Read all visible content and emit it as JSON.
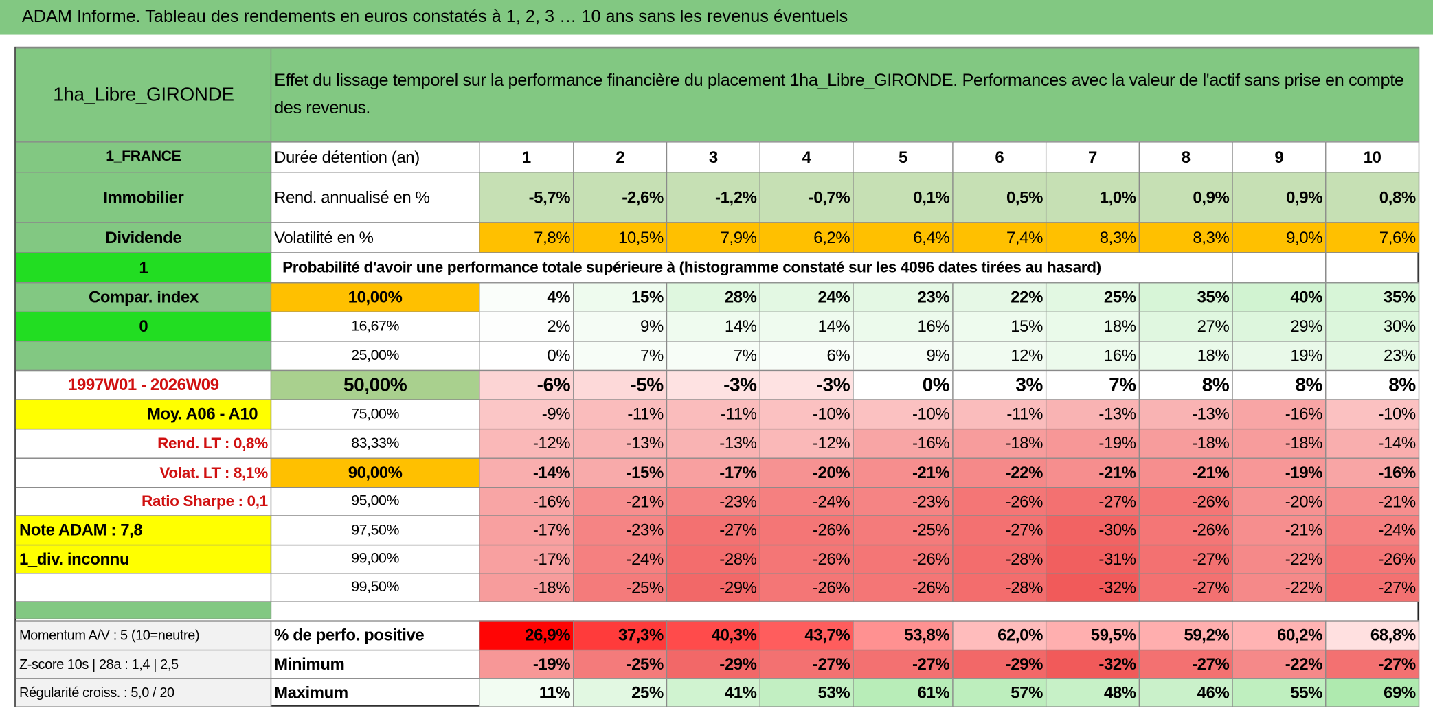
{
  "title": "ADAM Informe. Tableau des rendements en euros constatés à 1, 2, 3 … 10 ans sans les revenus éventuels",
  "header": {
    "fund": "1ha_Libre_GIRONDE",
    "description": "Effet du lissage temporel sur la performance financière du placement 1ha_Libre_GIRONDE. Performances avec la valeur de l'actif sans prise en compte des revenus."
  },
  "rows": [
    {
      "left": "1_FRANCE",
      "label": "Durée détention (an)",
      "cells": [
        "1",
        "2",
        "3",
        "4",
        "5",
        "6",
        "7",
        "8",
        "9",
        "10"
      ]
    },
    {
      "left": "Immobilier",
      "label": "Rend. annualisé en %",
      "cells": [
        "-5,7%",
        "-2,6%",
        "-1,2%",
        "-0,7%",
        "0,1%",
        "0,5%",
        "1,0%",
        "0,9%",
        "0,9%",
        "0,8%"
      ]
    },
    {
      "left": "Dividende",
      "label": "Volatilité en %",
      "cells": [
        "7,8%",
        "10,5%",
        "7,9%",
        "6,2%",
        "6,4%",
        "7,4%",
        "8,3%",
        "8,3%",
        "9,0%",
        "7,6%"
      ]
    },
    {
      "left": "1",
      "note": "Probabilité d'avoir une performance totale supérieure à (histogramme constaté sur les 4096 dates tirées au hasard)"
    },
    {
      "left": "Compar. index",
      "label": "10,00%",
      "cells": [
        "4%",
        "15%",
        "28%",
        "24%",
        "23%",
        "22%",
        "25%",
        "35%",
        "40%",
        "35%"
      ]
    },
    {
      "left": "0",
      "label": "16,67%",
      "cells": [
        "2%",
        "9%",
        "14%",
        "14%",
        "16%",
        "15%",
        "18%",
        "27%",
        "29%",
        "30%"
      ]
    },
    {
      "label": "25,00%",
      "cells": [
        "0%",
        "7%",
        "7%",
        "6%",
        "9%",
        "12%",
        "16%",
        "18%",
        "19%",
        "23%"
      ]
    },
    {
      "left": "1997W01 - 2026W09",
      "label": "50,00%",
      "cells": [
        "-6%",
        "-5%",
        "-3%",
        "-3%",
        "0%",
        "3%",
        "7%",
        "8%",
        "8%",
        "8%"
      ]
    },
    {
      "left": "Moy. A06 - A10",
      "label": "75,00%",
      "cells": [
        "-9%",
        "-11%",
        "-11%",
        "-10%",
        "-10%",
        "-11%",
        "-13%",
        "-13%",
        "-16%",
        "-10%"
      ]
    },
    {
      "left": "Rend. LT :   0,8%",
      "label": "83,33%",
      "cells": [
        "-12%",
        "-13%",
        "-13%",
        "-12%",
        "-16%",
        "-18%",
        "-19%",
        "-18%",
        "-18%",
        "-14%"
      ]
    },
    {
      "left": "Volat. LT :   8,1%",
      "label": "90,00%",
      "cells": [
        "-14%",
        "-15%",
        "-17%",
        "-20%",
        "-21%",
        "-22%",
        "-21%",
        "-21%",
        "-19%",
        "-16%"
      ]
    },
    {
      "left": "Ratio Sharpe :    0,1",
      "label": "95,00%",
      "cells": [
        "-16%",
        "-21%",
        "-23%",
        "-24%",
        "-23%",
        "-26%",
        "-27%",
        "-26%",
        "-20%",
        "-21%"
      ]
    },
    {
      "left": "Note ADAM : 7,8",
      "label": "97,50%",
      "cells": [
        "-17%",
        "-23%",
        "-27%",
        "-26%",
        "-25%",
        "-27%",
        "-30%",
        "-26%",
        "-21%",
        "-24%"
      ]
    },
    {
      "left": "1_div. inconnu",
      "label": "99,00%",
      "cells": [
        "-17%",
        "-24%",
        "-28%",
        "-26%",
        "-26%",
        "-28%",
        "-31%",
        "-27%",
        "-22%",
        "-26%"
      ]
    },
    {
      "label": "99,50%",
      "cells": [
        "-18%",
        "-25%",
        "-29%",
        "-26%",
        "-26%",
        "-28%",
        "-32%",
        "-27%",
        "-22%",
        "-27%"
      ]
    },
    {
      "left": "Momentum A/V : 5 (10=neutre)",
      "label": "% de perfo. positive",
      "cells": [
        "26,9%",
        "37,3%",
        "40,3%",
        "43,7%",
        "53,8%",
        "62,0%",
        "59,5%",
        "59,2%",
        "60,2%",
        "68,8%"
      ]
    },
    {
      "left": "Z-score 10s | 28a : 1,4 | 2,5",
      "label": "Minimum",
      "cells": [
        "-19%",
        "-25%",
        "-29%",
        "-27%",
        "-27%",
        "-29%",
        "-32%",
        "-27%",
        "-22%",
        "-27%"
      ]
    },
    {
      "left": "Régularité croiss. : 5,0 / 20",
      "label": "Maximum",
      "cells": [
        "11%",
        "25%",
        "41%",
        "53%",
        "61%",
        "57%",
        "48%",
        "46%",
        "55%",
        "69%"
      ]
    }
  ]
}
